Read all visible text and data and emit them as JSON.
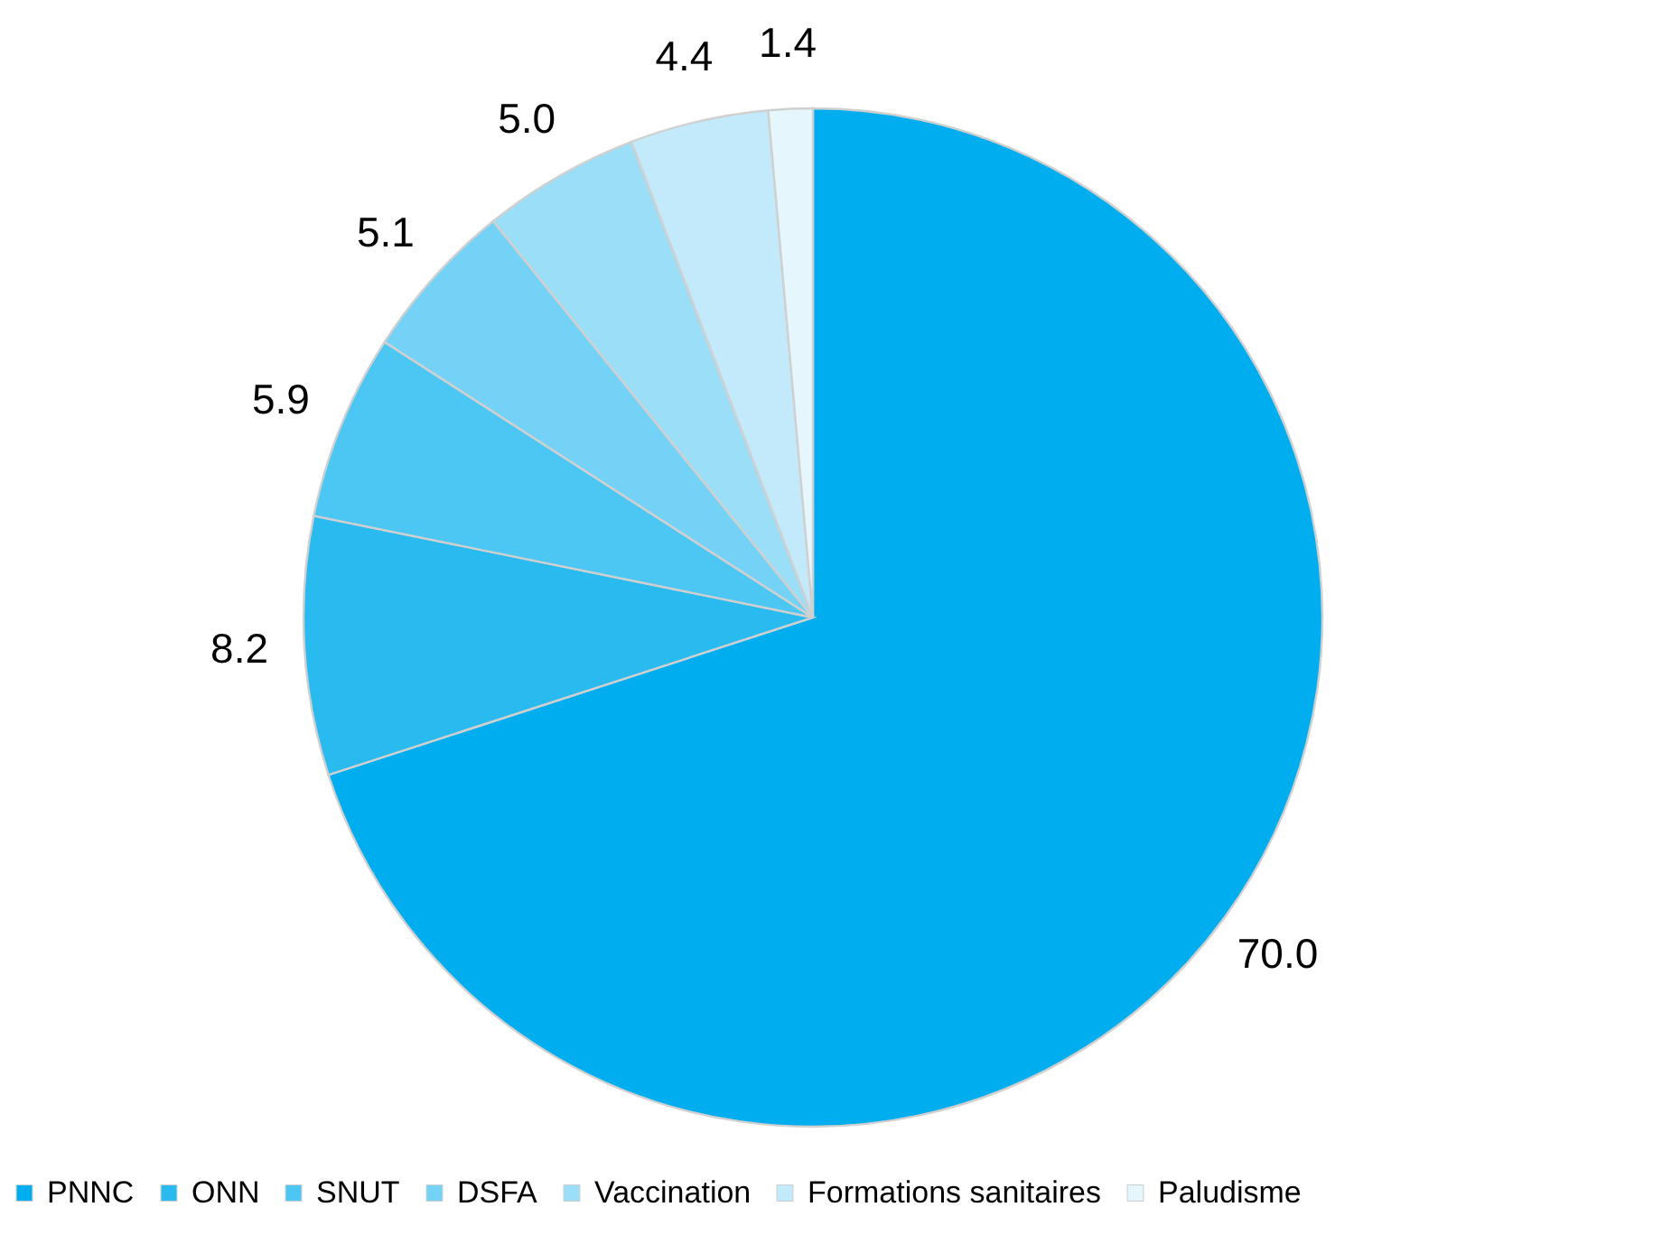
{
  "chart_data": {
    "type": "pie",
    "categories": [
      "PNNC",
      "ONN",
      "SNUT",
      "DSFA",
      "Vaccination",
      "Formations sanitaires",
      "Paludisme"
    ],
    "values": [
      70.0,
      8.2,
      5.9,
      5.1,
      5.0,
      4.4,
      1.4
    ],
    "value_labels": [
      "70.0",
      "8.2",
      "5.9",
      "5.1",
      "5.0",
      "4.4",
      "1.4"
    ],
    "colors": [
      "#00aeef",
      "#29bbf0",
      "#4cc6f3",
      "#73d2f5",
      "#9bdef8",
      "#c2eafa",
      "#e6f6fd"
    ],
    "legend": "bottom"
  }
}
